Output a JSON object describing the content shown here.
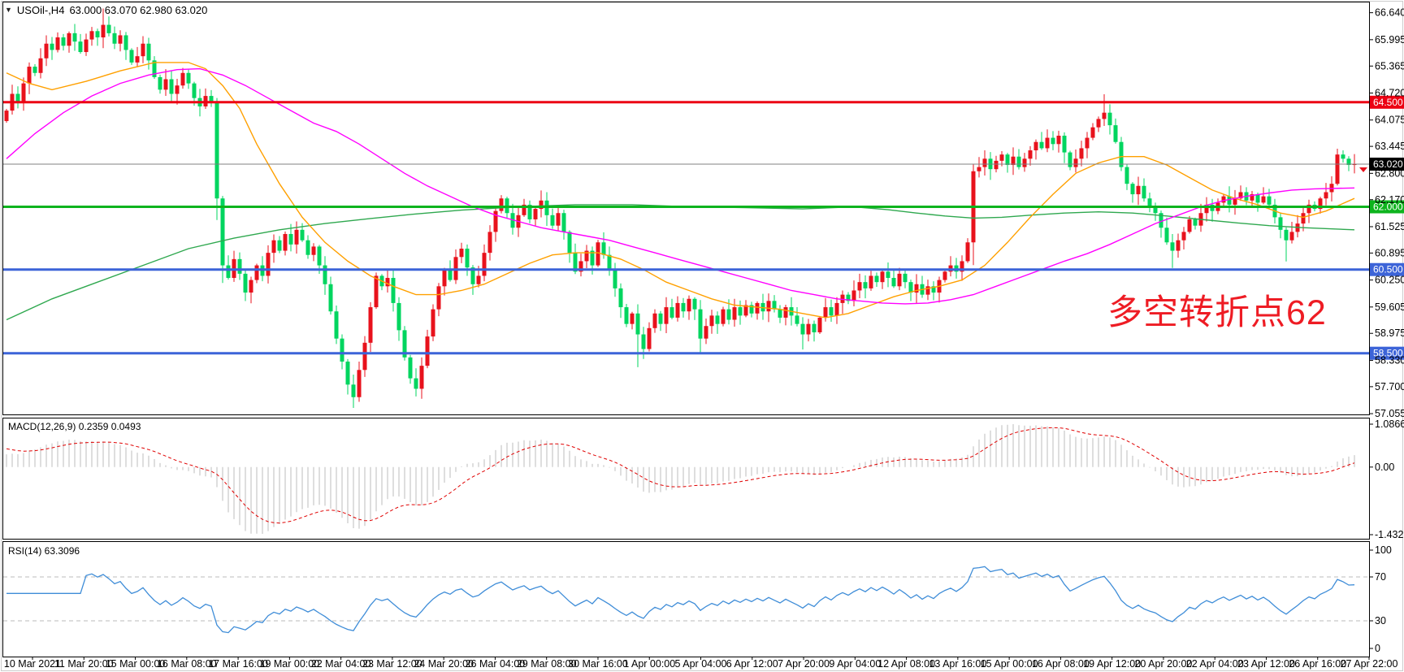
{
  "title": {
    "dropdown_glyph": "▼",
    "symbol_period": "USOil-,H4",
    "ohlc_readout": "63.000 63.070 62.980 63.020"
  },
  "indicators": {
    "macd_label": "MACD(12,26,9) 0.2359 0.0493",
    "rsi_label": "RSI(14) 63.3096"
  },
  "annotation": {
    "text": "多空转折点62",
    "color": "#ee1c24"
  },
  "chart_data": {
    "type": "candlestick",
    "symbol": "USOil-",
    "timeframe": "H4",
    "ohlc_readout": {
      "open": "63.000",
      "high": "63.070",
      "low": "62.980",
      "close": "63.020"
    },
    "bull_color": "#e8121c",
    "bear_color": "#00d55f",
    "first_open": 64.05,
    "closes": [
      64.3,
      64.7,
      64.5,
      64.95,
      65.35,
      65.2,
      65.55,
      65.9,
      65.75,
      66.05,
      65.85,
      66.15,
      65.95,
      65.7,
      66.0,
      66.2,
      66.05,
      66.35,
      66.15,
      65.9,
      66.1,
      65.75,
      65.45,
      65.6,
      65.9,
      65.5,
      65.1,
      64.8,
      65.05,
      64.7,
      64.9,
      65.2,
      64.95,
      64.6,
      64.4,
      64.65,
      64.5,
      62.2,
      60.6,
      60.3,
      60.75,
      60.4,
      59.95,
      60.25,
      60.6,
      60.35,
      60.9,
      61.2,
      60.95,
      61.35,
      61.1,
      61.45,
      61.2,
      60.85,
      61.05,
      60.6,
      60.15,
      59.5,
      58.85,
      58.3,
      57.75,
      57.45,
      58.1,
      58.75,
      59.6,
      60.35,
      60.1,
      60.3,
      59.7,
      59.05,
      58.4,
      57.9,
      57.65,
      58.2,
      58.9,
      59.55,
      60.1,
      60.5,
      60.25,
      60.8,
      61.0,
      60.55,
      60.15,
      60.35,
      60.9,
      61.4,
      61.9,
      62.2,
      61.85,
      61.5,
      61.8,
      62.05,
      61.7,
      61.95,
      62.15,
      61.8,
      61.55,
      61.85,
      61.4,
      60.9,
      60.45,
      60.7,
      60.95,
      60.6,
      61.15,
      60.85,
      60.5,
      60.05,
      59.6,
      59.2,
      59.45,
      58.95,
      58.6,
      59.1,
      59.45,
      59.2,
      59.6,
      59.35,
      59.7,
      59.5,
      59.8,
      59.55,
      58.85,
      59.15,
      59.4,
      59.2,
      59.55,
      59.3,
      59.6,
      59.4,
      59.65,
      59.45,
      59.7,
      59.5,
      59.75,
      59.55,
      59.35,
      59.6,
      59.4,
      59.2,
      58.95,
      59.2,
      59.0,
      59.35,
      59.6,
      59.4,
      59.7,
      59.9,
      59.75,
      60.0,
      60.2,
      60.05,
      60.35,
      60.2,
      60.45,
      60.3,
      60.1,
      60.4,
      60.2,
      59.95,
      60.15,
      59.9,
      60.1,
      59.95,
      60.25,
      60.45,
      60.6,
      60.45,
      60.7,
      61.15,
      62.85,
      62.95,
      63.15,
      62.9,
      63.1,
      63.25,
      63.0,
      63.2,
      62.95,
      63.15,
      63.35,
      63.55,
      63.4,
      63.65,
      63.5,
      63.7,
      63.3,
      62.95,
      63.15,
      63.4,
      63.65,
      63.9,
      64.1,
      64.25,
      63.95,
      63.55,
      62.95,
      62.55,
      62.3,
      62.5,
      62.2,
      62.0,
      61.85,
      61.5,
      61.15,
      60.95,
      61.2,
      61.4,
      61.7,
      61.55,
      61.85,
      62.05,
      61.9,
      62.1,
      62.25,
      62.05,
      62.2,
      62.35,
      62.15,
      62.3,
      62.1,
      62.25,
      62.05,
      61.75,
      61.45,
      61.2,
      61.4,
      61.6,
      61.85,
      62.05,
      61.95,
      62.2,
      62.35,
      62.55,
      63.25,
      63.15,
      63.0,
      63.02
    ],
    "wick_extras": {
      "17": [
        0.15,
        0
      ],
      "37": [
        0,
        0.35
      ],
      "38": [
        0,
        0.2
      ],
      "61": [
        0,
        0.2
      ],
      "111": [
        0,
        0.6
      ],
      "122": [
        0,
        0.3
      ],
      "140": [
        0,
        0.25
      ],
      "170": [
        0.1,
        0.45
      ],
      "193": [
        0.2,
        0
      ],
      "205": [
        0,
        0.3
      ],
      "225": [
        0,
        0.25
      ]
    },
    "price_axis_ticks": [
      "66.640",
      "65.995",
      "65.365",
      "64.720",
      "64.075",
      "63.445",
      "62.800",
      "62.170",
      "61.525",
      "60.895",
      "60.250",
      "59.605",
      "58.975",
      "58.330",
      "57.700",
      "57.055"
    ],
    "horizontal_levels": [
      {
        "price": 64.5,
        "label": "64.500",
        "color": "#ec0013"
      },
      {
        "price": 62.0,
        "label": "62.000",
        "color": "#0eb41e"
      },
      {
        "price": 60.5,
        "label": "60.500",
        "color": "#3c64d8"
      },
      {
        "price": 58.5,
        "label": "58.500",
        "color": "#3c64d8"
      }
    ],
    "current_price": {
      "value": 63.02,
      "label": "63.020",
      "line_color": "#808080",
      "badge_color": "#000000",
      "marker_color": "#e8121c"
    },
    "moving_averages": [
      {
        "name": "slow-ma",
        "color": "#2fa84f",
        "anchors": [
          [
            0,
            59.3
          ],
          [
            8,
            59.8
          ],
          [
            16,
            60.2
          ],
          [
            24,
            60.6
          ],
          [
            32,
            61.0
          ],
          [
            40,
            61.25
          ],
          [
            48,
            61.45
          ],
          [
            56,
            61.6
          ],
          [
            64,
            61.72
          ],
          [
            72,
            61.83
          ],
          [
            80,
            61.92
          ],
          [
            90,
            62.0
          ],
          [
            100,
            62.05
          ],
          [
            110,
            62.05
          ],
          [
            120,
            62.0
          ],
          [
            130,
            61.98
          ],
          [
            140,
            61.95
          ],
          [
            149,
            62.0
          ],
          [
            155,
            61.93
          ],
          [
            160,
            61.85
          ],
          [
            165,
            61.78
          ],
          [
            170,
            61.73
          ],
          [
            175,
            61.75
          ],
          [
            180,
            61.8
          ],
          [
            186,
            61.85
          ],
          [
            192,
            61.88
          ],
          [
            198,
            61.85
          ],
          [
            204,
            61.78
          ],
          [
            210,
            61.7
          ],
          [
            216,
            61.62
          ],
          [
            222,
            61.55
          ],
          [
            228,
            61.5
          ],
          [
            237,
            61.45
          ]
        ]
      },
      {
        "name": "fast-ma",
        "color": "#ffa000",
        "anchors": [
          [
            0,
            65.2
          ],
          [
            4,
            64.95
          ],
          [
            8,
            64.8
          ],
          [
            14,
            65.0
          ],
          [
            20,
            65.25
          ],
          [
            26,
            65.45
          ],
          [
            32,
            65.45
          ],
          [
            35,
            65.3
          ],
          [
            38,
            64.9
          ],
          [
            41,
            64.35
          ],
          [
            44,
            63.5
          ],
          [
            48,
            62.55
          ],
          [
            52,
            61.75
          ],
          [
            56,
            61.15
          ],
          [
            60,
            60.7
          ],
          [
            64,
            60.35
          ],
          [
            68,
            60.1
          ],
          [
            72,
            59.9
          ],
          [
            76,
            59.9
          ],
          [
            80,
            60.0
          ],
          [
            84,
            60.15
          ],
          [
            88,
            60.4
          ],
          [
            92,
            60.65
          ],
          [
            96,
            60.85
          ],
          [
            100,
            60.9
          ],
          [
            104,
            60.9
          ],
          [
            108,
            60.75
          ],
          [
            112,
            60.5
          ],
          [
            116,
            60.2
          ],
          [
            120,
            60.0
          ],
          [
            124,
            59.8
          ],
          [
            128,
            59.65
          ],
          [
            132,
            59.6
          ],
          [
            136,
            59.55
          ],
          [
            140,
            59.45
          ],
          [
            144,
            59.35
          ],
          [
            148,
            59.45
          ],
          [
            152,
            59.65
          ],
          [
            156,
            59.85
          ],
          [
            160,
            60.0
          ],
          [
            164,
            60.1
          ],
          [
            168,
            60.25
          ],
          [
            172,
            60.6
          ],
          [
            176,
            61.15
          ],
          [
            180,
            61.75
          ],
          [
            184,
            62.3
          ],
          [
            188,
            62.8
          ],
          [
            192,
            63.05
          ],
          [
            196,
            63.2
          ],
          [
            200,
            63.2
          ],
          [
            204,
            63.0
          ],
          [
            208,
            62.7
          ],
          [
            212,
            62.4
          ],
          [
            216,
            62.2
          ],
          [
            220,
            62.05
          ],
          [
            224,
            61.85
          ],
          [
            228,
            61.75
          ],
          [
            232,
            61.9
          ],
          [
            237,
            62.2
          ]
        ]
      },
      {
        "name": "medium-ma",
        "color": "#ff00ff",
        "anchors": [
          [
            0,
            63.15
          ],
          [
            5,
            63.75
          ],
          [
            10,
            64.25
          ],
          [
            15,
            64.65
          ],
          [
            20,
            64.95
          ],
          [
            25,
            65.15
          ],
          [
            30,
            65.28
          ],
          [
            34,
            65.3
          ],
          [
            38,
            65.15
          ],
          [
            42,
            64.9
          ],
          [
            46,
            64.6
          ],
          [
            50,
            64.3
          ],
          [
            54,
            64.0
          ],
          [
            58,
            63.8
          ],
          [
            62,
            63.5
          ],
          [
            66,
            63.15
          ],
          [
            70,
            62.8
          ],
          [
            74,
            62.5
          ],
          [
            78,
            62.25
          ],
          [
            82,
            62.0
          ],
          [
            86,
            61.8
          ],
          [
            90,
            61.65
          ],
          [
            94,
            61.5
          ],
          [
            98,
            61.4
          ],
          [
            102,
            61.3
          ],
          [
            106,
            61.2
          ],
          [
            110,
            61.05
          ],
          [
            114,
            60.9
          ],
          [
            118,
            60.75
          ],
          [
            122,
            60.6
          ],
          [
            126,
            60.45
          ],
          [
            130,
            60.3
          ],
          [
            134,
            60.15
          ],
          [
            138,
            60.0
          ],
          [
            142,
            59.9
          ],
          [
            146,
            59.8
          ],
          [
            150,
            59.75
          ],
          [
            154,
            59.7
          ],
          [
            158,
            59.68
          ],
          [
            162,
            59.7
          ],
          [
            166,
            59.78
          ],
          [
            170,
            59.9
          ],
          [
            174,
            60.1
          ],
          [
            178,
            60.3
          ],
          [
            182,
            60.5
          ],
          [
            186,
            60.7
          ],
          [
            190,
            60.88
          ],
          [
            194,
            61.1
          ],
          [
            198,
            61.35
          ],
          [
            202,
            61.6
          ],
          [
            206,
            61.8
          ],
          [
            210,
            62.0
          ],
          [
            214,
            62.15
          ],
          [
            218,
            62.25
          ],
          [
            222,
            62.33
          ],
          [
            226,
            62.4
          ],
          [
            230,
            62.43
          ],
          [
            237,
            62.45
          ]
        ]
      }
    ],
    "macd": {
      "params": "12,26,9",
      "main_value": 0.2359,
      "signal_value": 0.0493,
      "axis_labels": [
        "1.0866",
        "0.00",
        "-1.4328"
      ],
      "hist_color": "#bdbdbd",
      "signal_color": "#e00000"
    },
    "rsi": {
      "period": 14,
      "value": 63.3096,
      "axis_labels": [
        "100",
        "70",
        "30",
        "0"
      ],
      "levels": [
        70,
        30
      ],
      "line_color": "#3f8dd8",
      "level_color": "#bbbbbb"
    },
    "time_axis": [
      "10 Mar 2021",
      "11 Mar 20:00",
      "15 Mar 00:00",
      "16 Mar 08:00",
      "17 Mar 16:00",
      "19 Mar 00:00",
      "22 Mar 04:00",
      "23 Mar 12:00",
      "24 Mar 20:00",
      "26 Mar 04:00",
      "29 Mar 08:00",
      "30 Mar 16:00",
      "1 Apr 00:00",
      "5 Apr 04:00",
      "6 Apr 12:00",
      "7 Apr 20:00",
      "9 Apr 04:00",
      "12 Apr 08:00",
      "13 Apr 16:00",
      "15 Apr 00:00",
      "16 Apr 08:00",
      "19 Apr 12:00",
      "20 Apr 20:00",
      "22 Apr 04:00",
      "23 Apr 12:00",
      "26 Apr 16:00",
      "27 Apr 22:00"
    ]
  }
}
